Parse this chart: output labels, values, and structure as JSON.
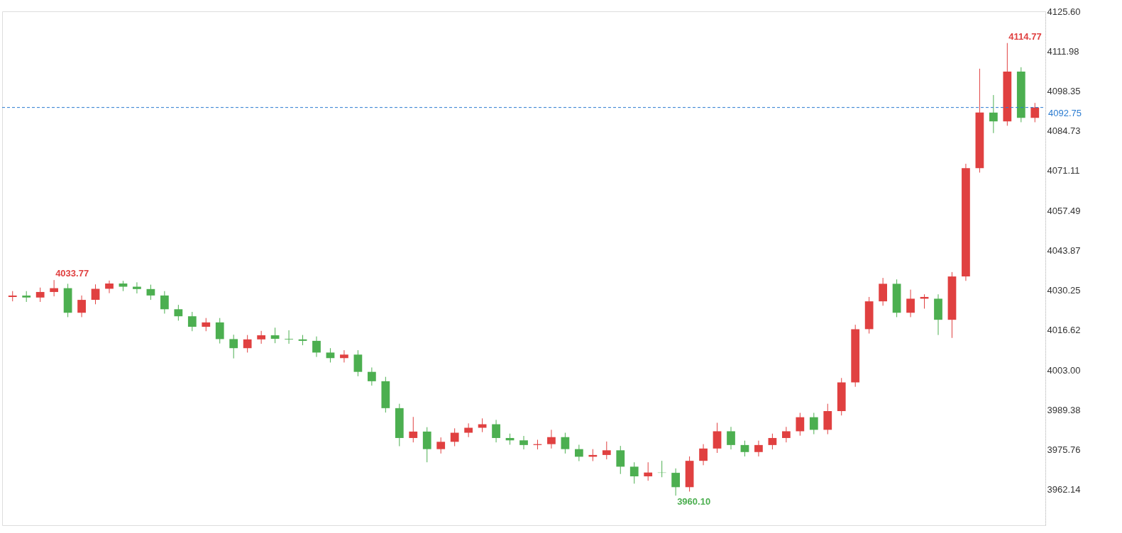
{
  "chart_data": {
    "type": "candlestick",
    "categories": [
      null,
      null,
      null,
      null,
      null,
      null,
      null,
      null,
      null,
      null,
      null,
      null,
      null,
      null,
      null,
      null,
      null,
      null,
      null,
      null,
      null,
      null,
      null,
      null,
      null,
      null,
      null,
      null,
      null,
      null,
      null,
      null,
      null,
      null,
      null,
      null,
      null,
      null,
      null,
      null,
      null,
      null,
      null,
      null,
      null,
      null,
      null,
      null,
      null,
      null,
      null,
      null,
      null,
      null,
      null,
      null,
      null,
      null,
      null,
      null,
      null,
      null,
      null,
      null,
      null,
      null,
      null,
      null,
      null,
      null,
      null,
      null,
      null,
      null,
      null
    ],
    "ohlc": [
      [
        4028.0,
        4030.0,
        4026.5,
        4028.5
      ],
      [
        4028.5,
        4030.0,
        4026.3,
        4027.8
      ],
      [
        4027.8,
        4031.2,
        4026.3,
        4029.7
      ],
      [
        4029.7,
        4033.77,
        4028.2,
        4031.0
      ],
      [
        4031.0,
        4032.5,
        4021.1,
        4022.6
      ],
      [
        4022.6,
        4028.5,
        4021.1,
        4027.0
      ],
      [
        4027.0,
        4032.3,
        4025.5,
        4030.8
      ],
      [
        4030.8,
        4033.6,
        4029.3,
        4032.6
      ],
      [
        4032.6,
        4033.5,
        4030.0,
        4031.5
      ],
      [
        4031.5,
        4033.0,
        4029.2,
        4030.7
      ],
      [
        4030.7,
        4032.2,
        4027.0,
        4028.5
      ],
      [
        4028.5,
        4030.0,
        4022.3,
        4023.8
      ],
      [
        4023.8,
        4025.3,
        4019.9,
        4021.4
      ],
      [
        4021.4,
        4022.9,
        4016.3,
        4017.8
      ],
      [
        4017.8,
        4020.8,
        4016.3,
        4019.3
      ],
      [
        4019.3,
        4020.8,
        4012.1,
        4013.6
      ],
      [
        4013.6,
        4015.1,
        4007.0,
        4010.5
      ],
      [
        4010.5,
        4015.0,
        4009.0,
        4013.5
      ],
      [
        4013.5,
        4016.4,
        4012.0,
        4014.9
      ],
      [
        4014.9,
        4017.5,
        4012.2,
        4013.7
      ],
      [
        4013.7,
        4016.6,
        4012.0,
        4013.5
      ],
      [
        4013.5,
        4015.0,
        4011.5,
        4013.0
      ],
      [
        4013.0,
        4014.5,
        4007.5,
        4009.0
      ],
      [
        4009.0,
        4010.5,
        4005.6,
        4007.1
      ],
      [
        4007.1,
        4009.8,
        4005.6,
        4008.3
      ],
      [
        4008.3,
        4009.8,
        4000.9,
        4002.4
      ],
      [
        4002.4,
        4003.9,
        3997.7,
        3999.2
      ],
      [
        3999.2,
        4000.7,
        3988.5,
        3990.0
      ],
      [
        3990.0,
        3991.5,
        3977.0,
        3979.8
      ],
      [
        3979.8,
        3987.0,
        3978.3,
        3982.0
      ],
      [
        3982.0,
        3983.5,
        3971.5,
        3976.0
      ],
      [
        3976.0,
        3980.0,
        3974.5,
        3978.5
      ],
      [
        3978.5,
        3983.1,
        3977.0,
        3981.6
      ],
      [
        3981.6,
        3984.8,
        3980.1,
        3983.3
      ],
      [
        3983.3,
        3986.5,
        3981.8,
        3984.5
      ],
      [
        3984.5,
        3986.0,
        3978.3,
        3979.8
      ],
      [
        3979.8,
        3981.3,
        3977.5,
        3979.0
      ],
      [
        3979.0,
        3980.5,
        3975.9,
        3977.4
      ],
      [
        3977.4,
        3979.2,
        3975.9,
        3977.7
      ],
      [
        3977.7,
        3982.6,
        3976.2,
        3980.1
      ],
      [
        3980.1,
        3981.6,
        3974.5,
        3976.0
      ],
      [
        3976.0,
        3977.5,
        3971.9,
        3973.4
      ],
      [
        3973.4,
        3976.0,
        3971.9,
        3974.0
      ],
      [
        3974.0,
        3978.6,
        3972.5,
        3975.6
      ],
      [
        3975.6,
        3977.1,
        3967.5,
        3970.0
      ],
      [
        3970.0,
        3971.5,
        3964.2,
        3966.7
      ],
      [
        3966.7,
        3971.5,
        3965.2,
        3968.0
      ],
      [
        3968.0,
        3972.0,
        3966.4,
        3967.9
      ],
      [
        3967.9,
        3969.4,
        3960.1,
        3963.0
      ],
      [
        3963.0,
        3973.5,
        3961.5,
        3972.0
      ],
      [
        3972.0,
        3977.7,
        3970.5,
        3976.2
      ],
      [
        3976.2,
        3985.0,
        3974.7,
        3982.1
      ],
      [
        3982.1,
        3983.6,
        3975.9,
        3977.4
      ],
      [
        3977.4,
        3978.9,
        3973.5,
        3975.0
      ],
      [
        3975.0,
        3978.9,
        3973.5,
        3977.4
      ],
      [
        3977.4,
        3981.3,
        3975.9,
        3979.8
      ],
      [
        3979.8,
        3983.6,
        3978.3,
        3982.1
      ],
      [
        3982.1,
        3988.4,
        3980.6,
        3986.9
      ],
      [
        3986.9,
        3988.4,
        3981.1,
        3982.6
      ],
      [
        3982.6,
        3991.5,
        3981.1,
        3989.0
      ],
      [
        3989.0,
        4000.3,
        3987.5,
        3998.8
      ],
      [
        3998.8,
        4018.5,
        3997.3,
        4017.0
      ],
      [
        4017.0,
        4028.0,
        4015.5,
        4026.5
      ],
      [
        4026.5,
        4034.5,
        4025.0,
        4032.5
      ],
      [
        4032.5,
        4034.0,
        4021.1,
        4022.6
      ],
      [
        4022.6,
        4030.5,
        4021.1,
        4027.4
      ],
      [
        4027.4,
        4028.9,
        4024.0,
        4028.0
      ],
      [
        4027.4,
        4028.9,
        4015.0,
        4020.2
      ],
      [
        4020.2,
        4036.5,
        4014.0,
        4035.0
      ],
      [
        4035.0,
        4073.5,
        4033.5,
        4072.0
      ],
      [
        4072.0,
        4106.0,
        4070.5,
        4091.0
      ],
      [
        4091.0,
        4097.0,
        4084.0,
        4088.0
      ],
      [
        4088.0,
        4114.77,
        4086.5,
        4105.0
      ],
      [
        4105.0,
        4106.5,
        4087.7,
        4089.2
      ],
      [
        4089.2,
        4094.3,
        4087.7,
        4092.75
      ]
    ],
    "colors": [
      "#e04040",
      "#4caf50",
      "#e04040",
      "#e04040",
      "#4caf50",
      "#e04040",
      "#e04040",
      "#e04040",
      "#4caf50",
      "#4caf50",
      "#4caf50",
      "#4caf50",
      "#4caf50",
      "#4caf50",
      "#e04040",
      "#4caf50",
      "#4caf50",
      "#e04040",
      "#e04040",
      "#4caf50",
      "#4caf50",
      "#4caf50",
      "#4caf50",
      "#4caf50",
      "#e04040",
      "#4caf50",
      "#4caf50",
      "#4caf50",
      "#4caf50",
      "#e04040",
      "#4caf50",
      "#e04040",
      "#e04040",
      "#e04040",
      "#e04040",
      "#4caf50",
      "#4caf50",
      "#4caf50",
      "#e04040",
      "#e04040",
      "#4caf50",
      "#4caf50",
      "#e04040",
      "#e04040",
      "#4caf50",
      "#4caf50",
      "#e04040",
      "#4caf50",
      "#4caf50",
      "#e04040",
      "#e04040",
      "#e04040",
      "#4caf50",
      "#4caf50",
      "#e04040",
      "#e04040",
      "#e04040",
      "#e04040",
      "#4caf50",
      "#e04040",
      "#e04040",
      "#e04040",
      "#e04040",
      "#e04040",
      "#4caf50",
      "#e04040",
      "#e04040",
      "#4caf50",
      "#e04040",
      "#e04040",
      "#e04040",
      "#4caf50",
      "#e04040",
      "#4caf50",
      "#e04040"
    ],
    "ylim": [
      3950.0,
      4125.6
    ],
    "yticks": [
      3962.14,
      3975.76,
      3989.38,
      {
        "value": 4003,
        "label": "4003.00"
      },
      4016.62,
      4030.25,
      4043.87,
      4057.49,
      4071.11,
      4084.73,
      4098.35,
      4111.98,
      {
        "value": 4125.6,
        "label": "4125.60"
      }
    ],
    "tick_labels": "y",
    "grid": false,
    "annotations": [
      "4033.77",
      "4114.77",
      "3960.10"
    ],
    "ref_lines": [
      {
        "axis": "y",
        "value": 4092.75,
        "label": "4092.75",
        "color": "#2a7bd0",
        "line_style": "dashed"
      }
    ]
  }
}
